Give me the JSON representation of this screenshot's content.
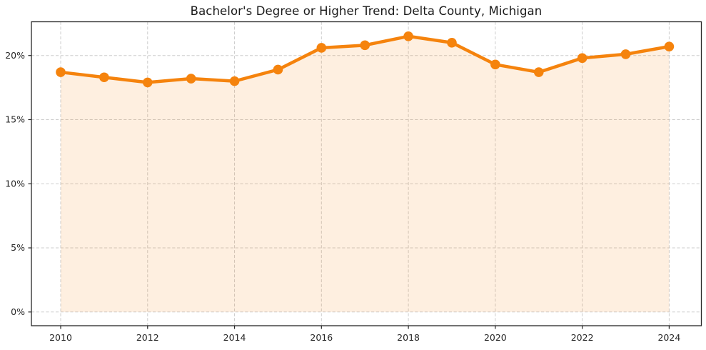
{
  "chart_data": {
    "type": "area",
    "title": "Bachelor's Degree or Higher Trend: Delta County, Michigan",
    "xlabel": "",
    "ylabel": "",
    "x": [
      2010,
      2011,
      2012,
      2013,
      2014,
      2015,
      2016,
      2017,
      2018,
      2019,
      2020,
      2021,
      2022,
      2023,
      2024
    ],
    "series": [
      {
        "name": "Bachelor's degree or higher (%)",
        "values": [
          18.7,
          18.3,
          17.9,
          18.2,
          18.0,
          18.9,
          20.6,
          20.8,
          21.5,
          21.0,
          19.3,
          18.7,
          19.8,
          20.1,
          20.7
        ]
      }
    ],
    "ylim": [
      -1.07,
      22.63
    ],
    "yticks": [
      0,
      5,
      10,
      15,
      20
    ],
    "ytick_labels": [
      "0%",
      "5%",
      "10%",
      "15%",
      "20%"
    ],
    "xticks": [
      2010,
      2012,
      2014,
      2016,
      2018,
      2020,
      2022,
      2024
    ],
    "xtick_labels": [
      "2010",
      "2012",
      "2014",
      "2016",
      "2018",
      "2020",
      "2022",
      "2024"
    ],
    "grid": true,
    "legend": "none",
    "colors": {
      "line": "#f5830d",
      "marker": "#f5830d",
      "fill": "rgba(245, 131, 13, 0.13)",
      "grid": "#cdcdcd",
      "spine": "#262626",
      "tick_text": "#262626",
      "background": "#ffffff"
    }
  }
}
